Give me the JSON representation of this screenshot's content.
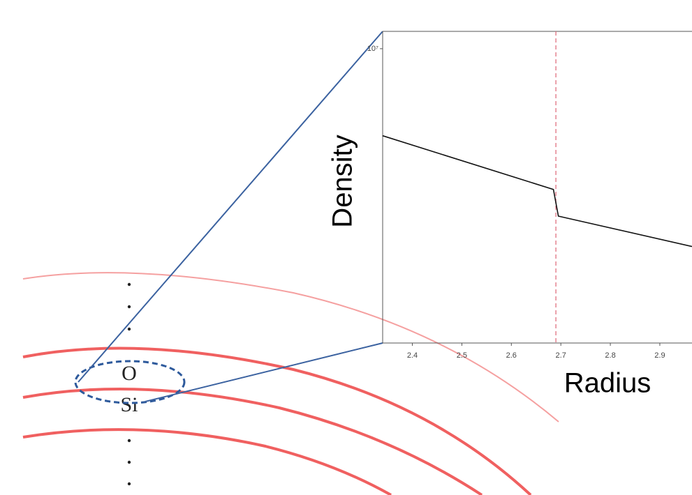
{
  "chart_data": {
    "type": "line",
    "xlabel": "Radius",
    "ylabel": "Density",
    "x": [
      2.34,
      2.685,
      2.695,
      2.965
    ],
    "series": [
      {
        "color": "#111111",
        "values": [
          7500000,
          6280000,
          5750000,
          5200000
        ]
      }
    ],
    "xlim": [
      2.34,
      2.965
    ],
    "xticks": [
      2.4,
      2.5,
      2.6,
      2.7,
      2.8,
      2.9
    ],
    "ylim": [
      3780000,
      10590000
    ],
    "log_y": true,
    "yticks": [
      {
        "value": 10000000,
        "label": "10⁷"
      }
    ],
    "vline": 2.69,
    "vline_color": "#e07080"
  },
  "shell_labels": [
    "O",
    "Si"
  ]
}
